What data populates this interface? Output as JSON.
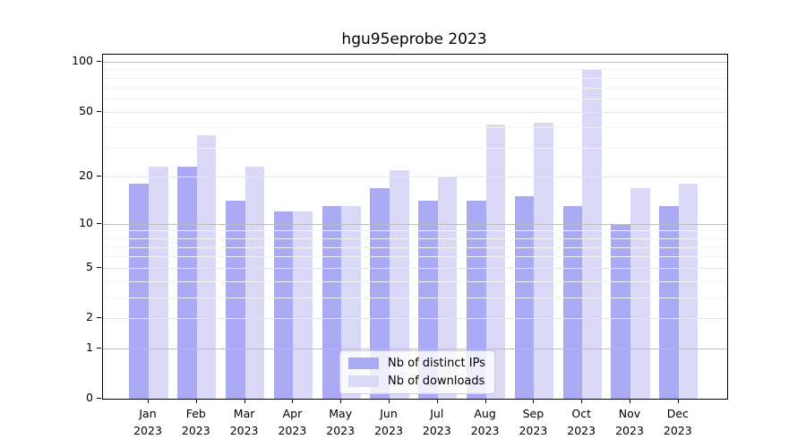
{
  "title": "hgu95eprobe 2023",
  "chart_data": {
    "type": "bar",
    "title": "hgu95eprobe 2023",
    "y_scale": "log1p",
    "ylim": [
      0,
      100
    ],
    "yticks": [
      100,
      50,
      20,
      10,
      5,
      2,
      1,
      0
    ],
    "grid": true,
    "gridlines": {
      "major": [
        100,
        10,
        1
      ],
      "labeled": [
        50,
        20,
        5,
        2
      ],
      "minor": [
        90,
        80,
        70,
        60,
        40,
        30,
        9,
        8,
        7,
        6,
        4,
        3
      ]
    },
    "categories": [
      "Jan",
      "Feb",
      "Mar",
      "Apr",
      "May",
      "Jun",
      "Jul",
      "Aug",
      "Sep",
      "Oct",
      "Nov",
      "Dec"
    ],
    "year": "2023",
    "series": [
      {
        "name": "Nb of distinct IPs",
        "color": "#a9a9f4",
        "values": [
          18,
          23,
          14,
          12,
          13,
          17,
          14,
          14,
          15,
          13,
          10,
          13
        ]
      },
      {
        "name": "Nb of downloads",
        "color": "#d9d9f7",
        "values": [
          23,
          36,
          23,
          12,
          13,
          22,
          20,
          42,
          43,
          89,
          17,
          18
        ]
      }
    ],
    "legend_position": "bottom-center",
    "axis_color": "#000000"
  }
}
